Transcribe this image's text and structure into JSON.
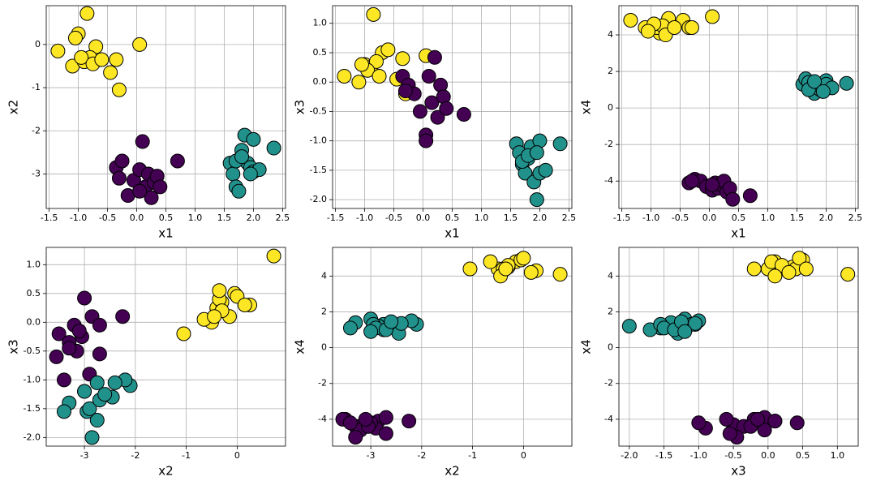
{
  "chart_data": [
    {
      "type": "scatter",
      "xlabel": "x1",
      "ylabel": "x2",
      "grid": true,
      "xlim": [
        -1.55,
        2.55
      ],
      "xticks": [
        -1.5,
        {
          "value": -1.0,
          "label": "-1.0"
        },
        -0.5,
        {
          "value": 0.0,
          "label": "0.0"
        },
        0.5,
        {
          "value": 1.0,
          "label": "1.0"
        },
        1.5,
        {
          "value": 2.0,
          "label": "2.0"
        },
        2.5
      ],
      "ylim": [
        -3.8,
        0.9
      ],
      "yticks": [
        -3,
        -2,
        -1,
        0
      ],
      "series": [
        {
          "color": "#fde725",
          "x": [
            -1.35,
            -1.0,
            -0.85,
            -1.1,
            -0.9,
            -0.7,
            -0.8,
            -0.45,
            -0.35,
            0.05,
            -0.3,
            -0.95,
            -0.75,
            -1.05,
            -0.6
          ],
          "y": [
            -0.15,
            0.25,
            0.72,
            -0.5,
            -0.4,
            -0.05,
            -0.3,
            -0.65,
            -0.35,
            0.0,
            -1.05,
            -0.3,
            -0.45,
            0.15,
            -0.35
          ]
        },
        {
          "color": "#440154",
          "x": [
            -0.35,
            -0.25,
            -0.15,
            -0.05,
            0.05,
            0.1,
            0.15,
            0.2,
            0.25,
            0.3,
            0.35,
            0.4,
            0.7,
            -0.3,
            0.05
          ],
          "y": [
            -2.85,
            -2.7,
            -3.5,
            -3.15,
            -2.9,
            -2.25,
            -3.3,
            -3.0,
            -3.55,
            -3.2,
            -3.05,
            -3.3,
            -2.7,
            -3.1,
            -3.4
          ]
        },
        {
          "color": "#21918c",
          "x": [
            1.6,
            1.65,
            1.7,
            1.75,
            1.8,
            1.85,
            1.9,
            1.95,
            2.0,
            2.0,
            2.1,
            2.35,
            1.7,
            1.8,
            1.95
          ],
          "y": [
            -2.75,
            -3.0,
            -3.3,
            -3.4,
            -2.45,
            -2.1,
            -2.75,
            -2.85,
            -2.2,
            -2.95,
            -2.9,
            -2.4,
            -2.7,
            -2.6,
            -3.0
          ]
        }
      ]
    },
    {
      "type": "scatter",
      "xlabel": "x1",
      "ylabel": "x3",
      "grid": true,
      "xlim": [
        -1.55,
        2.55
      ],
      "xticks": [
        -1.5,
        {
          "value": -1.0,
          "label": "-1.0"
        },
        -0.5,
        {
          "value": 0.0,
          "label": "0.0"
        },
        0.5,
        {
          "value": 1.0,
          "label": "1.0"
        },
        1.5,
        {
          "value": 2.0,
          "label": "2.0"
        },
        2.5
      ],
      "ylim": [
        -2.15,
        1.3
      ],
      "yticks": [
        {
          "value": -2.0,
          "label": "-2.0"
        },
        -1.5,
        {
          "value": -1.0,
          "label": "-1.0"
        },
        -0.5,
        {
          "value": 0.0,
          "label": "0.0"
        },
        0.5,
        {
          "value": 1.0,
          "label": "1.0"
        }
      ],
      "series": [
        {
          "color": "#fde725",
          "x": [
            -1.35,
            -1.0,
            -0.85,
            -1.1,
            -0.9,
            -0.7,
            -0.8,
            -0.45,
            -0.35,
            0.05,
            -0.3,
            -0.95,
            -0.75,
            -1.05,
            -0.6
          ],
          "y": [
            0.1,
            0.3,
            1.15,
            0.0,
            0.25,
            0.5,
            0.35,
            0.05,
            0.4,
            0.45,
            -0.2,
            0.2,
            0.1,
            0.3,
            0.55
          ]
        },
        {
          "color": "#440154",
          "x": [
            -0.35,
            -0.25,
            -0.15,
            -0.05,
            0.05,
            0.1,
            0.15,
            0.2,
            0.25,
            0.3,
            0.35,
            0.4,
            0.7,
            -0.3,
            0.05
          ],
          "y": [
            0.1,
            -0.05,
            -0.2,
            -0.5,
            -0.9,
            0.1,
            -0.35,
            0.42,
            -0.6,
            -0.05,
            -0.25,
            -0.45,
            -0.55,
            -0.15,
            -1.0
          ]
        },
        {
          "color": "#21918c",
          "x": [
            1.6,
            1.65,
            1.7,
            1.75,
            1.8,
            1.85,
            1.9,
            1.95,
            2.0,
            2.0,
            2.1,
            2.35,
            1.7,
            1.8,
            1.95
          ],
          "y": [
            -1.05,
            -1.2,
            -1.4,
            -1.55,
            -1.3,
            -1.1,
            -1.7,
            -2.0,
            -1.0,
            -1.55,
            -1.5,
            -1.05,
            -1.35,
            -1.25,
            -1.2
          ]
        }
      ]
    },
    {
      "type": "scatter",
      "xlabel": "x1",
      "ylabel": "x4",
      "grid": true,
      "xlim": [
        -1.55,
        2.55
      ],
      "xticks": [
        -1.5,
        {
          "value": -1.0,
          "label": "-1.0"
        },
        -0.5,
        {
          "value": 0.0,
          "label": "0.0"
        },
        0.5,
        {
          "value": 1.0,
          "label": "1.0"
        },
        1.5,
        {
          "value": 2.0,
          "label": "2.0"
        },
        2.5
      ],
      "ylim": [
        -5.5,
        5.6
      ],
      "yticks": [
        -4,
        -2,
        0,
        2,
        4
      ],
      "series": [
        {
          "color": "#fde725",
          "x": [
            -1.35,
            -1.0,
            -0.85,
            -1.1,
            -0.9,
            -0.7,
            -0.8,
            -0.45,
            -0.35,
            0.05,
            -0.3,
            -0.95,
            -0.75,
            -1.05,
            -0.6
          ],
          "y": [
            4.8,
            4.3,
            4.1,
            4.4,
            4.4,
            4.9,
            4.5,
            4.8,
            4.4,
            5.0,
            4.4,
            4.6,
            4.0,
            4.2,
            4.4
          ]
        },
        {
          "color": "#440154",
          "x": [
            -0.35,
            -0.25,
            -0.15,
            -0.05,
            0.05,
            0.1,
            0.15,
            0.2,
            0.25,
            0.3,
            0.35,
            0.4,
            0.7,
            -0.3,
            0.05
          ],
          "y": [
            -4.1,
            -3.9,
            -4.0,
            -4.3,
            -4.5,
            -4.1,
            -4.4,
            -4.2,
            -4.0,
            -4.6,
            -4.4,
            -5.0,
            -4.8,
            -4.0,
            -4.2
          ]
        },
        {
          "color": "#21918c",
          "x": [
            1.6,
            1.65,
            1.7,
            1.75,
            1.8,
            1.85,
            1.9,
            1.95,
            2.0,
            2.0,
            2.1,
            2.35,
            1.7,
            1.8,
            1.95
          ],
          "y": [
            1.3,
            1.6,
            1.4,
            1.1,
            0.8,
            1.3,
            1.0,
            1.2,
            1.5,
            1.3,
            1.1,
            1.35,
            1.0,
            1.45,
            0.9
          ]
        }
      ]
    },
    {
      "type": "scatter",
      "xlabel": "x2",
      "ylabel": "x3",
      "grid": true,
      "xlim": [
        -3.75,
        0.95
      ],
      "xticks": [
        -3,
        -2,
        -1,
        0
      ],
      "ylim": [
        -2.15,
        1.3
      ],
      "yticks": [
        {
          "value": -2.0,
          "label": "-2.0"
        },
        -1.5,
        {
          "value": -1.0,
          "label": "-1.0"
        },
        -0.5,
        {
          "value": 0.0,
          "label": "0.0"
        },
        0.5,
        {
          "value": 1.0,
          "label": "1.0"
        }
      ],
      "series": [
        {
          "color": "#fde725",
          "x": [
            -0.15,
            0.25,
            0.72,
            -0.5,
            -0.4,
            -0.05,
            -0.3,
            -0.65,
            -0.35,
            0.0,
            -1.05,
            -0.3,
            -0.45,
            0.15,
            -0.35
          ],
          "y": [
            0.1,
            0.3,
            1.15,
            0.0,
            0.25,
            0.5,
            0.35,
            0.05,
            0.4,
            0.45,
            -0.2,
            0.2,
            0.1,
            0.3,
            0.55
          ]
        },
        {
          "color": "#440154",
          "x": [
            -2.85,
            -2.7,
            -3.5,
            -3.15,
            -2.9,
            -2.25,
            -3.3,
            -3.0,
            -3.55,
            -3.2,
            -3.05,
            -3.3,
            -2.7,
            -3.1,
            -3.4
          ],
          "y": [
            0.1,
            -0.05,
            -0.2,
            -0.5,
            -0.9,
            0.1,
            -0.35,
            0.42,
            -0.6,
            -0.05,
            -0.25,
            -0.45,
            -0.55,
            -0.15,
            -1.0
          ]
        },
        {
          "color": "#21918c",
          "x": [
            -2.75,
            -3.0,
            -3.3,
            -3.4,
            -2.45,
            -2.1,
            -2.75,
            -2.85,
            -2.2,
            -2.95,
            -2.9,
            -2.4,
            -2.7,
            -2.6,
            -3.0
          ],
          "y": [
            -1.05,
            -1.2,
            -1.4,
            -1.55,
            -1.3,
            -1.1,
            -1.7,
            -2.0,
            -1.0,
            -1.55,
            -1.5,
            -1.05,
            -1.35,
            -1.25,
            -1.2
          ]
        }
      ]
    },
    {
      "type": "scatter",
      "xlabel": "x2",
      "ylabel": "x4",
      "grid": true,
      "xlim": [
        -3.75,
        0.95
      ],
      "xticks": [
        -3,
        -2,
        -1,
        0
      ],
      "ylim": [
        -5.5,
        5.6
      ],
      "yticks": [
        -4,
        -2,
        0,
        2,
        4
      ],
      "series": [
        {
          "color": "#fde725",
          "x": [
            -0.15,
            0.25,
            0.72,
            -0.5,
            -0.4,
            -0.05,
            -0.3,
            -0.65,
            -0.35,
            0.0,
            -1.05,
            -0.3,
            -0.45,
            0.15,
            -0.35
          ],
          "y": [
            4.8,
            4.3,
            4.1,
            4.4,
            4.4,
            4.9,
            4.5,
            4.8,
            4.4,
            5.0,
            4.4,
            4.6,
            4.0,
            4.2,
            4.4
          ]
        },
        {
          "color": "#440154",
          "x": [
            -2.85,
            -2.7,
            -3.5,
            -3.15,
            -2.9,
            -2.25,
            -3.3,
            -3.0,
            -3.55,
            -3.2,
            -3.05,
            -3.3,
            -2.7,
            -3.1,
            -3.4
          ],
          "y": [
            -4.1,
            -3.9,
            -4.0,
            -4.3,
            -4.5,
            -4.1,
            -4.4,
            -4.2,
            -4.0,
            -4.6,
            -4.4,
            -5.0,
            -4.8,
            -4.0,
            -4.2
          ]
        },
        {
          "color": "#21918c",
          "x": [
            -2.75,
            -3.0,
            -3.3,
            -3.4,
            -2.45,
            -2.1,
            -2.75,
            -2.85,
            -2.2,
            -2.95,
            -2.9,
            -2.4,
            -2.7,
            -2.6,
            -3.0
          ],
          "y": [
            1.3,
            1.6,
            1.4,
            1.1,
            0.8,
            1.3,
            1.0,
            1.2,
            1.5,
            1.3,
            1.1,
            1.35,
            1.0,
            1.45,
            0.9
          ]
        }
      ]
    },
    {
      "type": "scatter",
      "xlabel": "x3",
      "ylabel": "x4",
      "grid": true,
      "xlim": [
        -2.15,
        1.3
      ],
      "xticks": [
        {
          "value": -2.0,
          "label": "-2.0"
        },
        -1.5,
        {
          "value": -1.0,
          "label": "-1.0"
        },
        -0.5,
        {
          "value": 0.0,
          "label": "0.0"
        },
        0.5,
        {
          "value": 1.0,
          "label": "1.0"
        }
      ],
      "ylim": [
        -5.5,
        5.6
      ],
      "yticks": [
        -4,
        -2,
        0,
        2,
        4
      ],
      "series": [
        {
          "color": "#fde725",
          "x": [
            0.1,
            0.3,
            1.15,
            0.0,
            0.25,
            0.5,
            0.35,
            0.05,
            0.4,
            0.45,
            -0.2,
            0.2,
            0.1,
            0.3,
            0.55
          ],
          "y": [
            4.8,
            4.3,
            4.1,
            4.4,
            4.4,
            4.9,
            4.5,
            4.8,
            4.4,
            5.0,
            4.4,
            4.6,
            4.0,
            4.2,
            4.4
          ]
        },
        {
          "color": "#440154",
          "x": [
            0.1,
            -0.05,
            -0.2,
            -0.5,
            -0.9,
            0.1,
            -0.35,
            0.42,
            -0.6,
            -0.05,
            -0.25,
            -0.45,
            -0.55,
            -0.15,
            -1.0
          ],
          "y": [
            -4.1,
            -3.9,
            -4.0,
            -4.3,
            -4.5,
            -4.1,
            -4.4,
            -4.2,
            -4.0,
            -4.6,
            -4.4,
            -5.0,
            -4.8,
            -4.0,
            -4.2
          ]
        },
        {
          "color": "#21918c",
          "x": [
            -1.05,
            -1.2,
            -1.4,
            -1.55,
            -1.3,
            -1.1,
            -1.7,
            -2.0,
            -1.0,
            -1.55,
            -1.5,
            -1.05,
            -1.35,
            -1.25,
            -1.2
          ],
          "y": [
            1.3,
            1.6,
            1.4,
            1.1,
            0.8,
            1.3,
            1.0,
            1.2,
            1.5,
            1.3,
            1.1,
            1.35,
            1.0,
            1.45,
            0.9
          ]
        }
      ]
    }
  ]
}
